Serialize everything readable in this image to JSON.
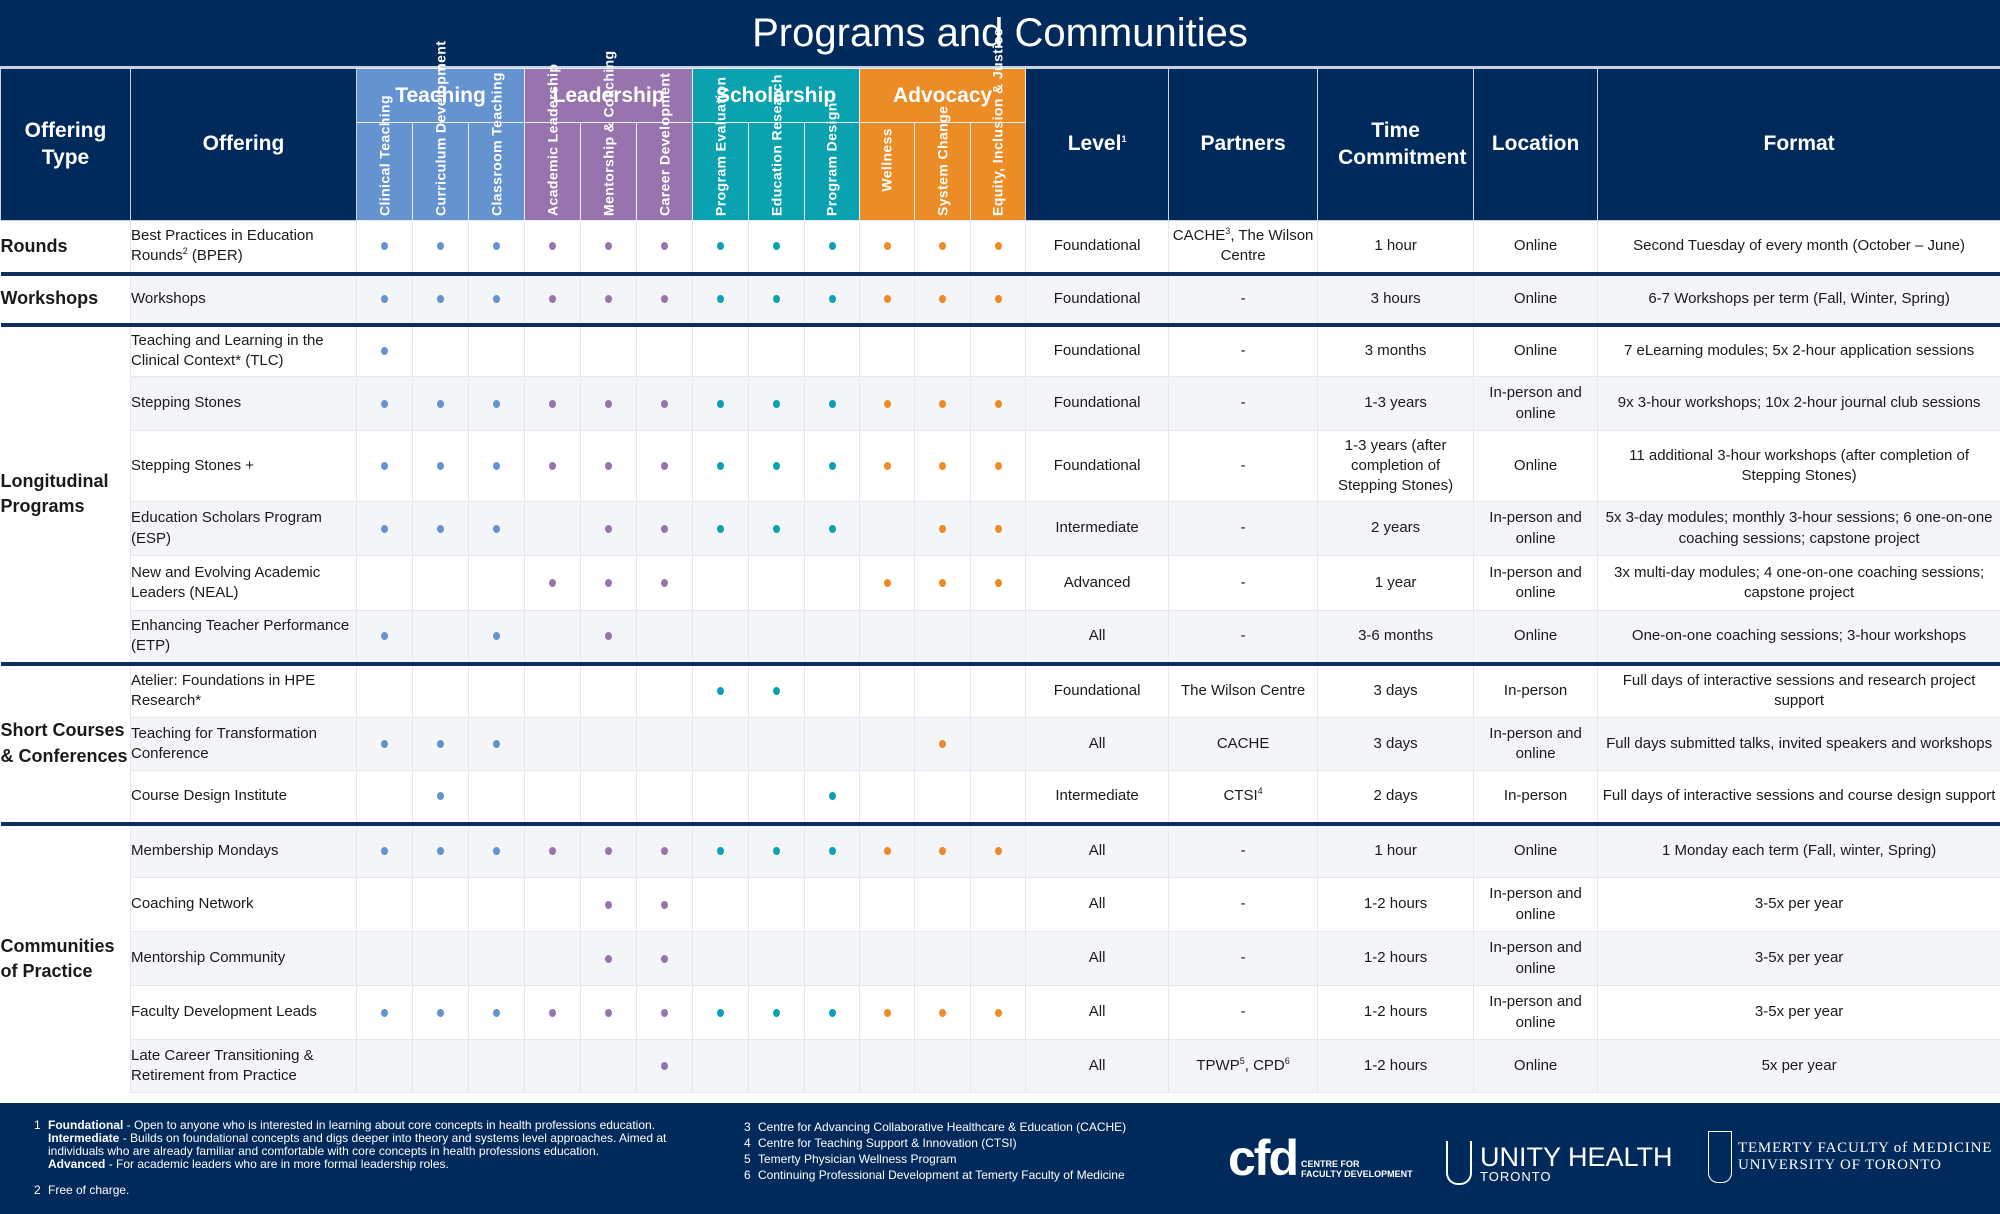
{
  "title": "Programs and Communities",
  "colors": {
    "navy": "#012a5c",
    "teaching": "#6593cf",
    "leadership": "#9874af",
    "scholarship": "#0aa2ae",
    "advocacy": "#ec8c26"
  },
  "headers": {
    "offering_type": "Offering Type",
    "offering": "Offering",
    "level": "Level",
    "level_sup": "1",
    "partners": "Partners",
    "time_commitment": "Time Commitment",
    "location": "Location",
    "format": "Format"
  },
  "groups": [
    {
      "name": "Teaching",
      "key": "teaching",
      "subs": [
        "Clinical Teaching",
        "Curriculum Development",
        "Classroom Teaching"
      ]
    },
    {
      "name": "Leadership",
      "key": "leadership",
      "subs": [
        "Academic Leadership",
        "Mentorship & Coaching",
        "Career Development"
      ]
    },
    {
      "name": "Scholarship",
      "key": "scholarship",
      "subs": [
        "Program Evaluation",
        "Education Research",
        "Program Design"
      ]
    },
    {
      "name": "Advocacy",
      "key": "advocacy",
      "subs": [
        "Wellness",
        "System Change",
        "Equity, Inclusion & Justice"
      ]
    }
  ],
  "sections": [
    {
      "type": "Rounds",
      "rows": [
        {
          "offering": "Best Practices in Education Rounds",
          "offering_sup": "2",
          "offering_suffix": " (BPER)",
          "dots": [
            1,
            1,
            1,
            1,
            1,
            1,
            1,
            1,
            1,
            1,
            1,
            1
          ],
          "level": "Foundational",
          "partners": "CACHE",
          "partners_sup": "3",
          "partners_suffix": ", The Wilson Centre",
          "time": "1 hour",
          "location": "Online",
          "format": "Second Tuesday of every month (October – June)"
        }
      ]
    },
    {
      "type": "Workshops",
      "rows": [
        {
          "offering": "Workshops",
          "dots": [
            1,
            1,
            1,
            1,
            1,
            1,
            1,
            1,
            1,
            1,
            1,
            1
          ],
          "level": "Foundational",
          "partners": "-",
          "time": "3 hours",
          "location": "Online",
          "format": "6-7 Workshops per term (Fall, Winter, Spring)"
        }
      ]
    },
    {
      "type": "Longitudinal Programs",
      "rows": [
        {
          "offering": "Teaching and Learning in the Clinical Context* (TLC)",
          "dots": [
            1,
            0,
            0,
            0,
            0,
            0,
            0,
            0,
            0,
            0,
            0,
            0
          ],
          "level": "Foundational",
          "partners": "-",
          "time": "3 months",
          "location": "Online",
          "format": "7 eLearning modules; 5x 2-hour application sessions"
        },
        {
          "offering": "Stepping Stones",
          "dots": [
            1,
            1,
            1,
            1,
            1,
            1,
            1,
            1,
            1,
            1,
            1,
            1
          ],
          "level": "Foundational",
          "partners": "-",
          "time": "1-3 years",
          "location": "In-person and online",
          "format": "9x 3-hour workshops; 10x 2-hour journal club sessions"
        },
        {
          "offering": "Stepping Stones +",
          "dots": [
            1,
            1,
            1,
            1,
            1,
            1,
            1,
            1,
            1,
            1,
            1,
            1
          ],
          "level": "Foundational",
          "partners": "-",
          "time": "1-3 years (after completion of Stepping Stones)",
          "location": "Online",
          "format": "11 additional 3-hour workshops (after completion of Stepping Stones)"
        },
        {
          "offering": "Education Scholars Program (ESP)",
          "dots": [
            1,
            1,
            1,
            0,
            1,
            1,
            1,
            1,
            1,
            0,
            1,
            1
          ],
          "level": "Intermediate",
          "partners": "-",
          "time": "2 years",
          "location": "In-person and online",
          "format": "5x 3-day modules; monthly 3-hour sessions; 6 one-on-one coaching sessions; capstone project"
        },
        {
          "offering": "New and Evolving Academic Leaders (NEAL)",
          "dots": [
            0,
            0,
            0,
            1,
            1,
            1,
            0,
            0,
            0,
            1,
            1,
            1
          ],
          "level": "Advanced",
          "partners": "-",
          "time": "1 year",
          "location": "In-person and online",
          "format": "3x multi-day modules; 4 one-on-one coaching sessions; capstone project"
        },
        {
          "offering": "Enhancing Teacher Performance (ETP)",
          "dots": [
            1,
            0,
            1,
            0,
            1,
            0,
            0,
            0,
            0,
            0,
            0,
            0
          ],
          "level": "All",
          "partners": "-",
          "time": "3-6 months",
          "location": "Online",
          "format": "One-on-one coaching sessions; 3-hour workshops"
        }
      ]
    },
    {
      "type": "Short Courses & Conferences",
      "rows": [
        {
          "offering": "Atelier: Foundations in HPE Research*",
          "dots": [
            0,
            0,
            0,
            0,
            0,
            0,
            1,
            1,
            0,
            0,
            0,
            0
          ],
          "level": "Foundational",
          "partners": "The Wilson Centre",
          "time": "3 days",
          "location": "In-person",
          "format": "Full days of interactive sessions and research project support"
        },
        {
          "offering": "Teaching for Transformation Conference",
          "dots": [
            1,
            1,
            1,
            0,
            0,
            0,
            0,
            0,
            0,
            0,
            1,
            0
          ],
          "level": "All",
          "partners": "CACHE",
          "time": "3 days",
          "location": "In-person and online",
          "format": "Full days submitted talks, invited speakers and workshops"
        },
        {
          "offering": "Course Design Institute",
          "dots": [
            0,
            1,
            0,
            0,
            0,
            0,
            0,
            0,
            1,
            0,
            0,
            0
          ],
          "level": "Intermediate",
          "partners": "CTSI",
          "partners_sup": "4",
          "time": "2 days",
          "location": "In-person",
          "format": "Full days of interactive sessions and course design support"
        }
      ]
    },
    {
      "type": "Communities of Practice",
      "rows": [
        {
          "offering": "Membership Mondays",
          "dots": [
            1,
            1,
            1,
            1,
            1,
            1,
            1,
            1,
            1,
            1,
            1,
            1
          ],
          "level": "All",
          "partners": "-",
          "time": "1 hour",
          "location": "Online",
          "format": "1 Monday each term (Fall, winter, Spring)"
        },
        {
          "offering": "Coaching Network",
          "dots": [
            0,
            0,
            0,
            0,
            1,
            1,
            0,
            0,
            0,
            0,
            0,
            0
          ],
          "level": "All",
          "partners": "-",
          "time": "1-2 hours",
          "location": "In-person and online",
          "format": "3-5x per year"
        },
        {
          "offering": "Mentorship Community",
          "dots": [
            0,
            0,
            0,
            0,
            1,
            1,
            0,
            0,
            0,
            0,
            0,
            0
          ],
          "level": "All",
          "partners": "-",
          "time": "1-2 hours",
          "location": "In-person and online",
          "format": "3-5x per year"
        },
        {
          "offering": "Faculty Development Leads",
          "dots": [
            1,
            1,
            1,
            1,
            1,
            1,
            1,
            1,
            1,
            1,
            1,
            1
          ],
          "level": "All",
          "partners": "-",
          "time": "1-2 hours",
          "location": "In-person and online",
          "format": "3-5x per year"
        },
        {
          "offering": "Late Career Transitioning & Retirement from Practice",
          "dots": [
            0,
            0,
            0,
            0,
            0,
            1,
            0,
            0,
            0,
            0,
            0,
            0
          ],
          "level": "All",
          "partners": "TPWP",
          "partners_sup": "5",
          "partners_suffix": ", CPD",
          "partners_sup2": "6",
          "time": "1-2 hours",
          "location": "Online",
          "format": "5x per year"
        }
      ]
    }
  ],
  "footnotes": {
    "fn1": {
      "num": "1",
      "items": [
        {
          "term": "Foundational",
          "text": " - Open to anyone who is interested in learning about core concepts in health professions education."
        },
        {
          "term": "Intermediate",
          "text": " - Builds on foundational concepts and digs deeper into theory and systems level approaches. Aimed at individuals who are already familiar and comfortable with core concepts in health professions education."
        },
        {
          "term": "Advanced",
          "text": " - For academic leaders who are in more formal leadership roles."
        }
      ]
    },
    "fn2": {
      "num": "2",
      "text": "Free of charge."
    },
    "partners": [
      {
        "num": "3",
        "text": "Centre for Advancing Collaborative Healthcare & Education (CACHE)"
      },
      {
        "num": "4",
        "text": "Centre for Teaching Support & Innovation (CTSI)"
      },
      {
        "num": "5",
        "text": "Temerty Physician Wellness Program"
      },
      {
        "num": "6",
        "text": "Continuing Professional Development at Temerty Faculty of Medicine"
      }
    ]
  },
  "logos": {
    "cfd": {
      "mark": "cfd",
      "line1": "CENTRE FOR",
      "line2": "FACULTY DEVELOPMENT"
    },
    "unity": {
      "line1": "UNITY HEALTH",
      "line2": "TORONTO"
    },
    "temerty": {
      "line1": "TEMERTY FACULTY of MEDICINE",
      "line2": "UNIVERSITY OF TORONTO"
    }
  }
}
